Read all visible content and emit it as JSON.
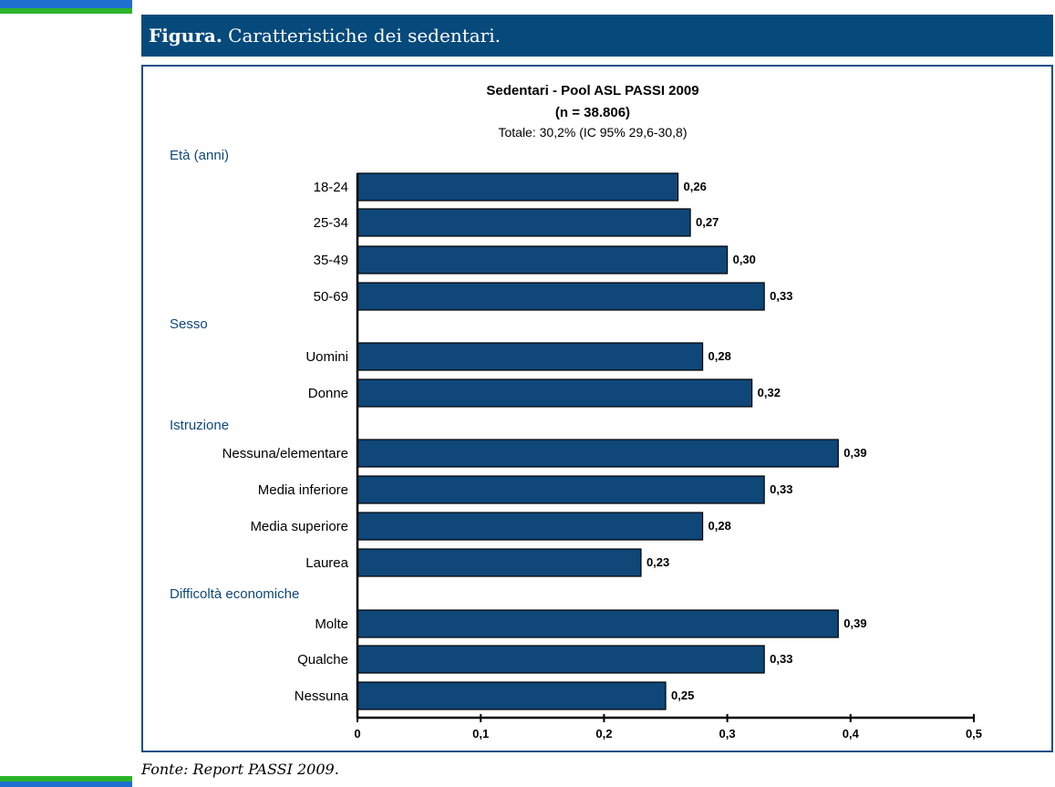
{
  "header": {
    "label": "Figura.",
    "title": "Caratteristiche dei sedentari."
  },
  "source": "Fonte: Report PASSI 2009.",
  "colors": {
    "bar": "#0f4779",
    "header": "#064a7c",
    "frame": "#0d4f86"
  },
  "chart_data": {
    "type": "bar",
    "orientation": "horizontal",
    "title": "Sedentari - Pool ASL PASSI 2009",
    "subtitle": "(n = 38.806)",
    "note": "Totale: 30,2% (IC 95% 29,6-30,8)",
    "xlim": [
      0,
      0.5
    ],
    "xticks": [
      "0",
      "0,1",
      "0,2",
      "0,3",
      "0,4",
      "0,5"
    ],
    "groups": [
      {
        "name": "Età (anni)",
        "categories": [
          "18-24",
          "25-34",
          "35-49",
          "50-69"
        ],
        "values": [
          0.26,
          0.27,
          0.3,
          0.33
        ],
        "labels": [
          "0,26",
          "0,27",
          "0,30",
          "0,33"
        ]
      },
      {
        "name": "Sesso",
        "categories": [
          "Uomini",
          "Donne"
        ],
        "values": [
          0.28,
          0.32
        ],
        "labels": [
          "0,28",
          "0,32"
        ]
      },
      {
        "name": "Istruzione",
        "categories": [
          "Nessuna/elementare",
          "Media inferiore",
          "Media superiore",
          "Laurea"
        ],
        "values": [
          0.39,
          0.33,
          0.28,
          0.23
        ],
        "labels": [
          "0,39",
          "0,33",
          "0,28",
          "0,23"
        ]
      },
      {
        "name": "Difficoltà economiche",
        "categories": [
          "Molte",
          "Qualche",
          "Nessuna"
        ],
        "values": [
          0.39,
          0.33,
          0.25
        ],
        "labels": [
          "0,39",
          "0,33",
          "0,25"
        ]
      }
    ]
  }
}
